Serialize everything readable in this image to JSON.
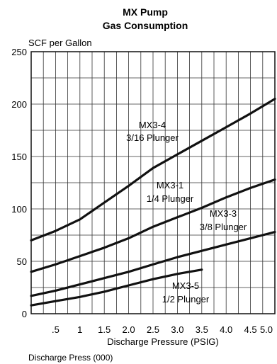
{
  "chart_data": {
    "type": "line",
    "title": "MX Pump",
    "subtitle": "Gas Consumption",
    "ylabel": "SCF per Gallon",
    "xlabel": "Discharge Pressure (PSIG)",
    "xnote": "Discharge Press (000)",
    "xlim": [
      0,
      5.0
    ],
    "ylim": [
      0,
      250
    ],
    "xticks": [
      0.5,
      1.0,
      1.5,
      2.0,
      2.5,
      3.0,
      3.5,
      4.0,
      4.5,
      5.0
    ],
    "xtick_labels": [
      ".5",
      "1",
      "1.5",
      "2.0",
      "2.5",
      "3.0",
      "3.5",
      "4.0",
      "4.5",
      "5.0"
    ],
    "yticks": [
      0,
      50,
      100,
      150,
      200,
      250
    ],
    "ytick_labels": [
      "0",
      "50",
      "100",
      "150",
      "200",
      "250"
    ],
    "grid": true,
    "series": [
      {
        "name": "MX3-4",
        "label_line1": "MX3-4",
        "label_line2": "3/16 Plunger",
        "x": [
          0.0,
          0.5,
          1.0,
          1.5,
          2.0,
          2.5,
          3.0,
          3.5,
          4.0,
          4.5,
          5.0
        ],
        "y": [
          70,
          79,
          90,
          106,
          122,
          139,
          152,
          165,
          178,
          191,
          205
        ]
      },
      {
        "name": "MX3-1",
        "label_line1": "MX3-1",
        "label_line2": "1/4 Plunger",
        "x": [
          0.0,
          0.5,
          1.0,
          1.5,
          2.0,
          2.5,
          3.0,
          3.5,
          4.0,
          4.5,
          5.0
        ],
        "y": [
          40,
          47,
          55,
          63,
          72,
          83,
          92,
          101,
          111,
          120,
          128
        ]
      },
      {
        "name": "MX3-3",
        "label_line1": "MX3-3",
        "label_line2": "3/8 Plunger",
        "x": [
          0.0,
          0.5,
          1.0,
          1.5,
          2.0,
          2.5,
          3.0,
          3.5,
          4.0,
          4.5,
          5.0
        ],
        "y": [
          17,
          22,
          28,
          34,
          40,
          47,
          54,
          60,
          66,
          72,
          78
        ]
      },
      {
        "name": "MX3-5",
        "label_line1": "MX3-5",
        "label_line2": "1/2 Plunger",
        "x": [
          0.0,
          0.5,
          1.0,
          1.5,
          2.0,
          2.5,
          3.0,
          3.5
        ],
        "y": [
          8,
          12,
          16,
          21,
          27,
          33,
          38,
          42
        ]
      }
    ]
  }
}
